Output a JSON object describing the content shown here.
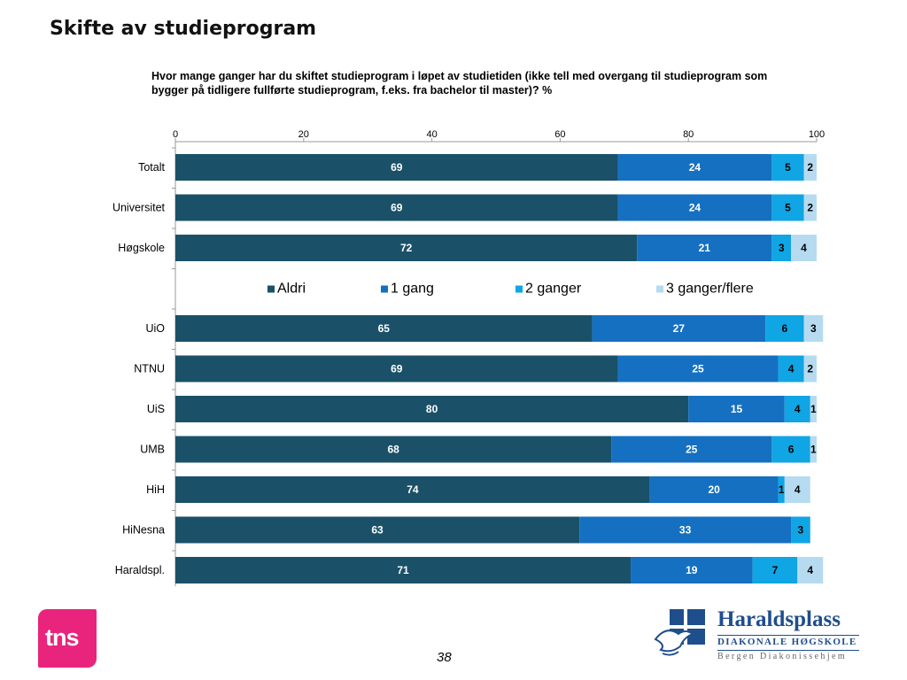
{
  "slide": {
    "title": "Skifte av studieprogram",
    "page_number": "38"
  },
  "logos": {
    "tns": "tns",
    "haraldsplass": {
      "name": "Haraldsplass",
      "line1": "DIAKONALE HØGSKOLE",
      "line2": "Bergen Diakonissehjem"
    }
  },
  "colors": {
    "Aldri": "#1a5168",
    "1 gang": "#1570c1",
    "2 ganger": "#10a5e4",
    "3 ganger/flere": "#b6dbf0"
  },
  "chart_data": {
    "type": "bar",
    "orientation": "horizontal",
    "stacked": true,
    "title": "Hvor mange ganger har du skiftet studieprogram i løpet av studietiden (ikke  tell med overgang til studieprogram som bygger på tidligere fullførte studieprogram, f.eks. fra bachelor til master)? %",
    "xlim": [
      0,
      100
    ],
    "xticks": [
      0,
      20,
      40,
      60,
      80,
      100
    ],
    "legend_position": "middle",
    "grid": false,
    "categories": [
      "Totalt",
      "Universitet",
      "Høgskole",
      "",
      "UiO",
      "NTNU",
      "UiS",
      "UMB",
      "HiH",
      "HiNesna",
      "Haraldspl."
    ],
    "series": [
      {
        "name": "Aldri",
        "values": [
          69,
          69,
          72,
          null,
          65,
          69,
          80,
          68,
          74,
          63,
          71
        ]
      },
      {
        "name": "1 gang",
        "values": [
          24,
          24,
          21,
          null,
          27,
          25,
          15,
          25,
          20,
          33,
          19
        ]
      },
      {
        "name": "2 ganger",
        "values": [
          5,
          5,
          3,
          null,
          6,
          4,
          4,
          6,
          1,
          3,
          7
        ]
      },
      {
        "name": "3 ganger/flere",
        "values": [
          2,
          2,
          4,
          null,
          3,
          2,
          1,
          1,
          4,
          null,
          4
        ]
      }
    ]
  }
}
